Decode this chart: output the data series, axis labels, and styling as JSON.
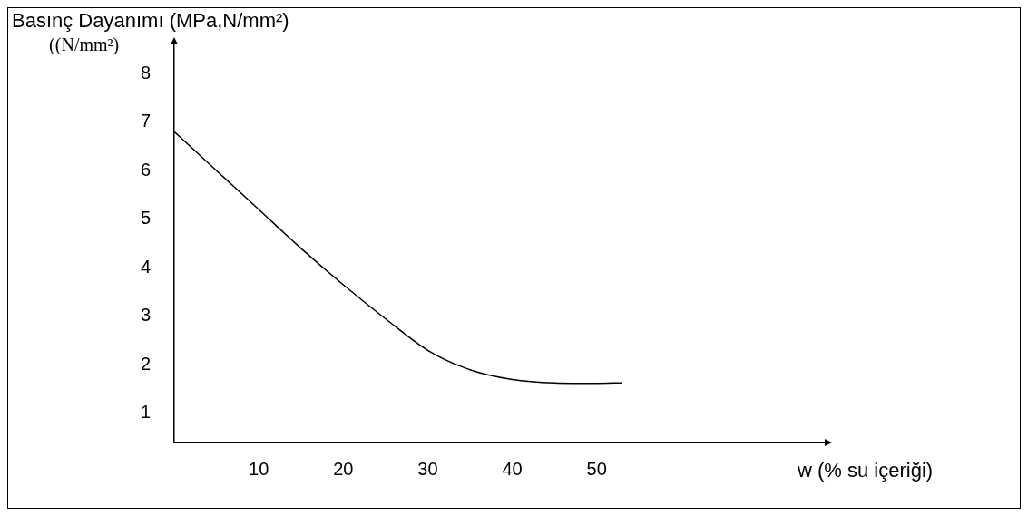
{
  "chart_data": {
    "type": "line",
    "title": "Basınç Dayanımı (MPa,N/mm²)",
    "ylabel": "((N/mm²)",
    "xlabel": "w (% su içeriği)",
    "x": [
      0,
      5,
      10,
      15,
      20,
      25,
      30,
      35,
      40,
      45,
      50,
      53
    ],
    "series": [
      {
        "color": "#000000",
        "values": [
          6.8,
          6.0,
          5.2,
          4.4,
          3.65,
          2.95,
          2.3,
          1.9,
          1.7,
          1.63,
          1.62,
          1.63
        ]
      }
    ],
    "xlim": [
      0,
      77
    ],
    "ylim": [
      0.4,
      8.6
    ],
    "xticks": [
      10,
      20,
      30,
      40,
      50
    ],
    "yticks": [
      1,
      2,
      3,
      4,
      5,
      6,
      7,
      8
    ],
    "grid": false,
    "legend": false,
    "marker": "none",
    "line_style": "solid"
  }
}
